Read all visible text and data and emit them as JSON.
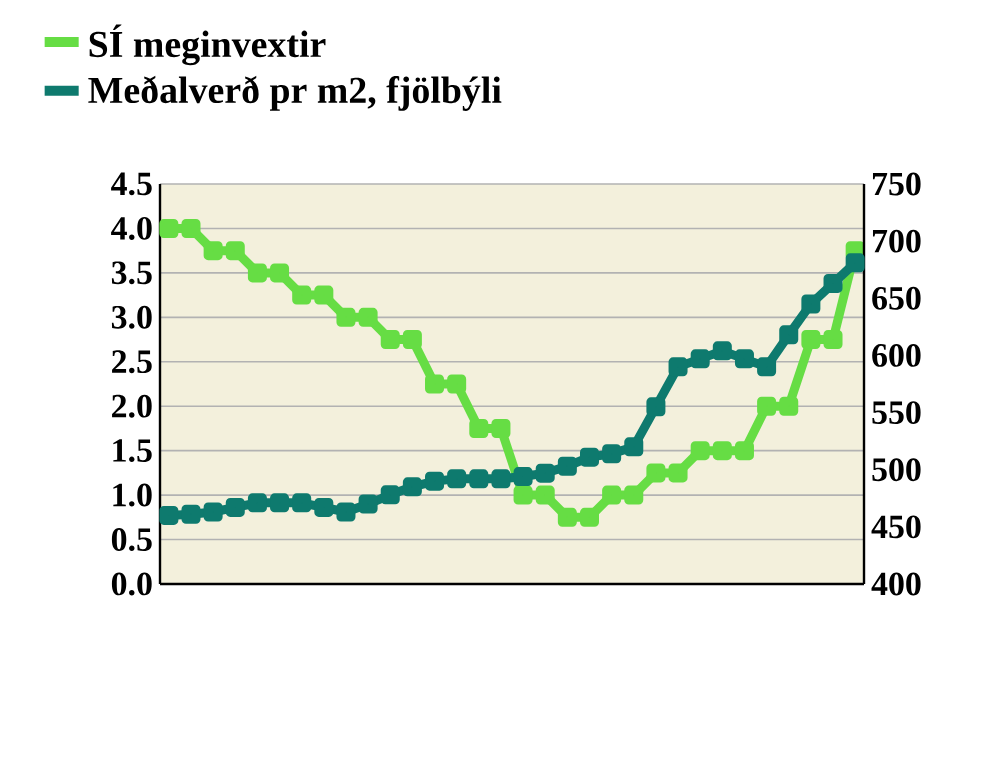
{
  "chart_data": {
    "type": "line",
    "categories": [
      null,
      null,
      null,
      null,
      null,
      null,
      null,
      null,
      null,
      null,
      null,
      null,
      null,
      null,
      null,
      null,
      null,
      null,
      null,
      null,
      null,
      null,
      null,
      null,
      null,
      null,
      null,
      null,
      null,
      null,
      null,
      null
    ],
    "series": [
      {
        "name": "SÍ meginvextir",
        "color": "#66dd44",
        "values": [
          4.0,
          4.0,
          3.75,
          3.75,
          3.5,
          3.5,
          3.25,
          3.25,
          3.0,
          3.0,
          2.75,
          2.75,
          2.25,
          2.25,
          1.75,
          1.75,
          1.0,
          1.0,
          0.75,
          0.75,
          1.0,
          1.0,
          1.25,
          1.25,
          1.5,
          1.5,
          1.5,
          2.0,
          2.0,
          2.75,
          2.75,
          3.75
        ]
      },
      {
        "name": "Meðalverð pr m2, fjölbýli",
        "color": "#0e7a6e",
        "axis": "y2",
        "values": [
          460,
          461,
          463,
          467,
          471,
          471,
          471,
          467,
          463,
          470,
          478,
          485,
          490,
          492,
          492,
          492,
          494,
          497,
          503,
          511,
          514,
          520,
          555,
          590,
          597,
          604,
          597,
          590,
          618,
          645,
          663,
          681
        ]
      }
    ],
    "ylim": [
      0,
      4.5
    ],
    "yticks": [
      {
        "value": 0,
        "label": "0.0"
      },
      {
        "value": 0.5,
        "label": "0.5"
      },
      {
        "value": 1,
        "label": "1.0"
      },
      {
        "value": 1.5,
        "label": "1.5"
      },
      {
        "value": 2,
        "label": "2.0"
      },
      {
        "value": 2.5,
        "label": "2.5"
      },
      {
        "value": 3,
        "label": "3.0"
      },
      {
        "value": 3.5,
        "label": "3.5"
      },
      {
        "value": 4,
        "label": "4.0"
      },
      {
        "value": 4.5,
        "label": "4.5"
      }
    ],
    "y2lim": [
      400,
      750
    ],
    "y2ticks": [
      400,
      450,
      500,
      550,
      600,
      650,
      700,
      750
    ],
    "grid": "y",
    "legend": "top left",
    "marker": "square",
    "line_style": "solid"
  }
}
